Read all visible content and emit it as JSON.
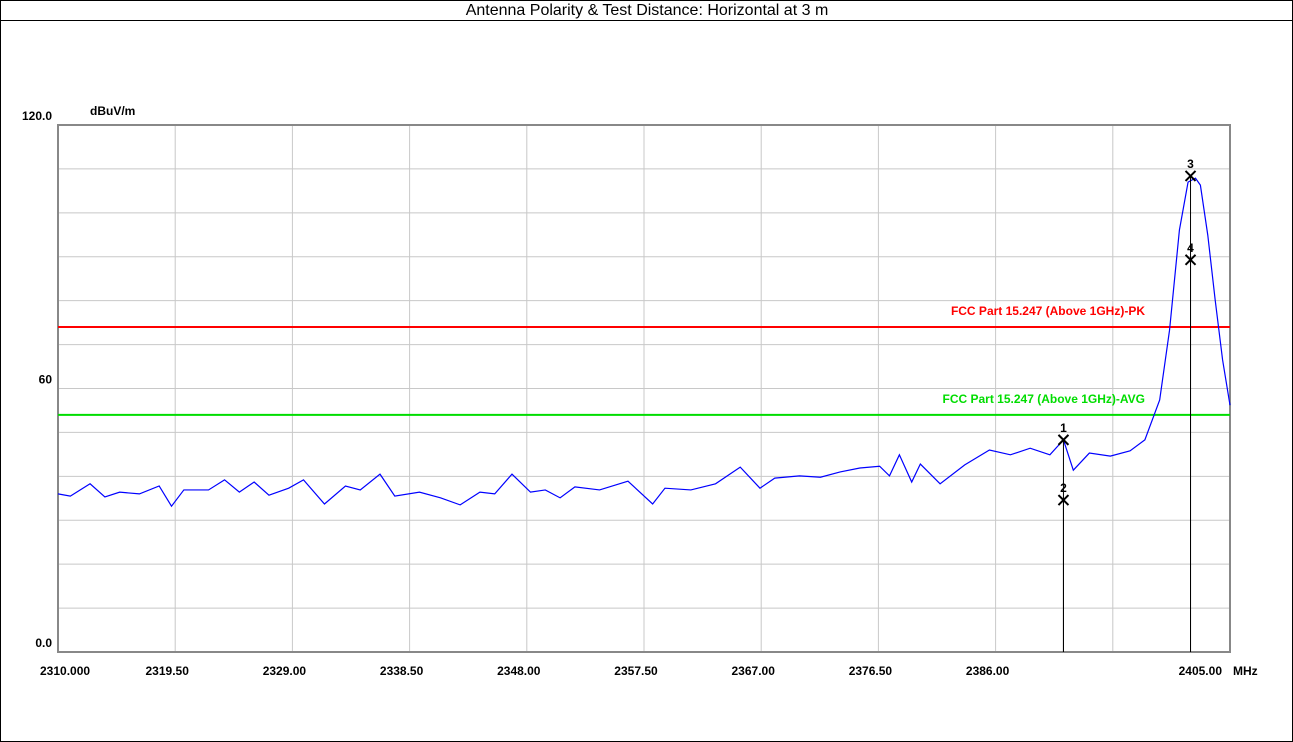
{
  "chart_data": {
    "type": "line",
    "title": "Antenna Polarity & Test Distance: Horizontal at 3 m",
    "y_unit_label": "dBuV/m",
    "x_unit_label": "MHz",
    "xlim": [
      2310,
      2405
    ],
    "ylim": [
      0,
      120
    ],
    "grid": true,
    "xticks": [
      {
        "value": 2310,
        "label": "2310.000"
      },
      {
        "value": 2319.5,
        "label": "2319.50"
      },
      {
        "value": 2329,
        "label": "2329.00"
      },
      {
        "value": 2338.5,
        "label": "2338.50"
      },
      {
        "value": 2348,
        "label": "2348.00"
      },
      {
        "value": 2357.5,
        "label": "2357.50"
      },
      {
        "value": 2367,
        "label": "2367.00"
      },
      {
        "value": 2376.5,
        "label": "2376.50"
      },
      {
        "value": 2386,
        "label": "2386.00"
      },
      {
        "value": 2395.5,
        "label": null
      },
      {
        "value": 2405,
        "label": "2405.00"
      }
    ],
    "yticks": [
      {
        "value": 0,
        "label": "0.0"
      },
      {
        "value": 10,
        "label": null
      },
      {
        "value": 20,
        "label": null
      },
      {
        "value": 30,
        "label": null
      },
      {
        "value": 40,
        "label": null
      },
      {
        "value": 50,
        "label": null
      },
      60,
      {
        "value": 70,
        "label": null
      },
      {
        "value": 80,
        "label": null
      },
      {
        "value": 90,
        "label": null
      },
      {
        "value": 100,
        "label": null
      },
      {
        "value": 110,
        "label": null
      },
      {
        "value": 120,
        "label": "120.0"
      }
    ],
    "x": [
      2310.0,
      2311.0,
      2312.6,
      2313.8,
      2315.0,
      2316.6,
      2318.2,
      2319.2,
      2320.2,
      2322.2,
      2323.5,
      2324.7,
      2325.9,
      2327.1,
      2328.7,
      2329.9,
      2331.6,
      2333.3,
      2334.5,
      2336.1,
      2337.3,
      2339.3,
      2341.0,
      2342.6,
      2344.2,
      2345.4,
      2346.8,
      2348.3,
      2349.5,
      2350.7,
      2351.9,
      2353.9,
      2356.2,
      2358.2,
      2359.2,
      2361.3,
      2363.3,
      2365.3,
      2366.9,
      2368.1,
      2370.1,
      2371.8,
      2373.4,
      2375.0,
      2376.6,
      2377.4,
      2378.2,
      2379.2,
      2379.9,
      2381.5,
      2383.5,
      2385.5,
      2387.2,
      2388.8,
      2390.4,
      2391.5,
      2392.3,
      2393.6,
      2395.3,
      2396.9,
      2398.1,
      2399.3,
      2400.1,
      2400.9,
      2401.6,
      2402.2,
      2402.6,
      2403.2,
      2403.8,
      2404.4,
      2405.0
    ],
    "series": [
      {
        "color": "#0000ff",
        "values": [
          36.0,
          35.5,
          38.3,
          35.3,
          36.4,
          36.0,
          37.8,
          33.2,
          36.9,
          36.9,
          39.2,
          36.4,
          38.7,
          35.7,
          37.3,
          39.2,
          33.7,
          37.8,
          36.9,
          40.5,
          35.5,
          36.4,
          35.1,
          33.5,
          36.4,
          36.0,
          40.5,
          36.4,
          36.9,
          35.1,
          37.6,
          36.9,
          38.9,
          33.7,
          37.3,
          36.9,
          38.3,
          42.1,
          37.3,
          39.6,
          40.1,
          39.8,
          41.0,
          41.9,
          42.3,
          40.1,
          44.9,
          38.7,
          42.8,
          38.3,
          42.6,
          46.0,
          44.9,
          46.4,
          44.9,
          48.3,
          41.4,
          45.3,
          44.6,
          45.8,
          48.3,
          57.4,
          73.3,
          96.1,
          107.0,
          107.9,
          106.3,
          94.9,
          80.1,
          66.5,
          56.2
        ]
      }
    ],
    "limit_lines": [
      {
        "label": "FCC Part 15.247 (Above 1GHz)-PK",
        "value": 74,
        "color": "#ff0000"
      },
      {
        "label": "FCC Part 15.247 (Above 1GHz)-AVG",
        "value": 54,
        "color": "#00dd00"
      }
    ],
    "markers": [
      {
        "label": "1",
        "x": 2391.5,
        "value": 48.3
      },
      {
        "label": "2",
        "x": 2391.5,
        "value": 34.6
      },
      {
        "label": "3",
        "x": 2401.8,
        "value": 108.4
      },
      {
        "label": "4",
        "x": 2401.8,
        "value": 89.3
      }
    ]
  }
}
